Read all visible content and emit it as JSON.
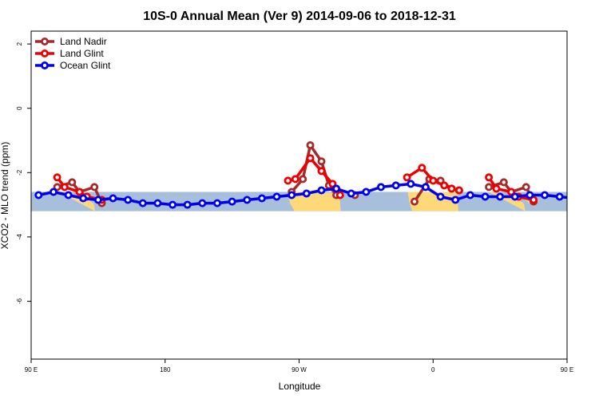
{
  "chart_data": {
    "type": "line",
    "title": "10S-0 Annual Mean (Ver 9)   2014-09-06 to 2018-12-31",
    "xlabel": "Longitude",
    "ylabel": "XCO2 - MLO trend (ppm)",
    "xlim": [
      90,
      450
    ],
    "ylim": [
      -7.8,
      2.4
    ],
    "x_ticks": [
      {
        "value": 90,
        "label": "90 E"
      },
      {
        "value": 180,
        "label": "180"
      },
      {
        "value": 270,
        "label": "90 W"
      },
      {
        "value": 360,
        "label": "0"
      },
      {
        "value": 450,
        "label": "90 E"
      },
      {
        "value": 540,
        "label": "180"
      }
    ],
    "y_ticks": [
      {
        "value": 2,
        "label": "2"
      },
      {
        "value": 0,
        "label": "0"
      },
      {
        "value": -2,
        "label": "-2"
      },
      {
        "value": -4,
        "label": "-4"
      },
      {
        "value": -6,
        "label": "-6"
      }
    ],
    "band": {
      "y_min": -3.2,
      "y_max": -2.6,
      "color": "#a8bfdc"
    },
    "land_color": "#fed97a",
    "legend_position": "top-left",
    "series": [
      {
        "name": "Land Nadir",
        "color": "#a52a2a",
        "points": [
          [
            107.5,
            -2.45
          ],
          [
            117.5,
            -2.3
          ],
          [
            122.5,
            -2.6
          ],
          [
            132.5,
            -2.45
          ],
          [
            137.5,
            -2.95
          ],
          [
            265,
            -2.6
          ],
          [
            272.5,
            -2.2
          ],
          [
            277.5,
            -1.15
          ],
          [
            285,
            -1.65
          ],
          [
            290,
            -2.4
          ],
          [
            295,
            -2.7
          ],
          [
            307.5,
            -2.7
          ],
          [
            347.5,
            -2.9
          ],
          [
            357.5,
            -2.2
          ],
          [
            365,
            -2.25
          ],
          [
            372.5,
            -2.5
          ],
          [
            377.5,
            -2.55
          ],
          [
            397.5,
            -2.45
          ],
          [
            407.5,
            -2.3
          ],
          [
            412.5,
            -2.6
          ],
          [
            422.5,
            -2.45
          ],
          [
            427.5,
            -2.9
          ]
        ]
      },
      {
        "name": "Land Glint",
        "color": "#ee0000",
        "points": [
          [
            107.5,
            -2.15
          ],
          [
            112.5,
            -2.45
          ],
          [
            122.5,
            -2.6
          ],
          [
            127.5,
            -2.75
          ],
          [
            137.5,
            -2.85
          ],
          [
            262.5,
            -2.25
          ],
          [
            267.5,
            -2.2
          ],
          [
            277.5,
            -1.55
          ],
          [
            285,
            -1.95
          ],
          [
            292.5,
            -2.35
          ],
          [
            297.5,
            -2.7
          ],
          [
            342.5,
            -2.15
          ],
          [
            352.5,
            -1.85
          ],
          [
            360,
            -2.25
          ],
          [
            367.5,
            -2.4
          ],
          [
            372.5,
            -2.5
          ],
          [
            377.5,
            -2.55
          ],
          [
            397.5,
            -2.15
          ],
          [
            402.5,
            -2.5
          ],
          [
            412.5,
            -2.6
          ],
          [
            417.5,
            -2.75
          ],
          [
            427.5,
            -2.85
          ]
        ]
      },
      {
        "name": "Ocean Glint",
        "color": "#0000ee",
        "points": [
          [
            95,
            -2.7
          ],
          [
            105,
            -2.6
          ],
          [
            115,
            -2.7
          ],
          [
            125,
            -2.8
          ],
          [
            135,
            -2.85
          ],
          [
            145,
            -2.8
          ],
          [
            155,
            -2.85
          ],
          [
            165,
            -2.95
          ],
          [
            175,
            -2.95
          ],
          [
            185,
            -3.0
          ],
          [
            195,
            -3.0
          ],
          [
            205,
            -2.95
          ],
          [
            215,
            -2.95
          ],
          [
            225,
            -2.9
          ],
          [
            235,
            -2.85
          ],
          [
            245,
            -2.8
          ],
          [
            255,
            -2.75
          ],
          [
            265,
            -2.7
          ],
          [
            275,
            -2.65
          ],
          [
            285,
            -2.55
          ],
          [
            295,
            -2.5
          ],
          [
            305,
            -2.65
          ],
          [
            315,
            -2.6
          ],
          [
            325,
            -2.45
          ],
          [
            335,
            -2.4
          ],
          [
            345,
            -2.35
          ],
          [
            355,
            -2.45
          ],
          [
            365,
            -2.75
          ],
          [
            375,
            -2.85
          ],
          [
            385,
            -2.7
          ],
          [
            395,
            -2.75
          ],
          [
            405,
            -2.75
          ],
          [
            415,
            -2.75
          ],
          [
            425,
            -2.7
          ],
          [
            435,
            -2.7
          ],
          [
            445,
            -2.75
          ],
          [
            455,
            -2.8
          ],
          [
            465,
            -2.85
          ],
          [
            475,
            -2.85
          ],
          [
            485,
            -2.9
          ],
          [
            495,
            -3.0
          ],
          [
            505,
            -3.0
          ]
        ]
      }
    ]
  }
}
